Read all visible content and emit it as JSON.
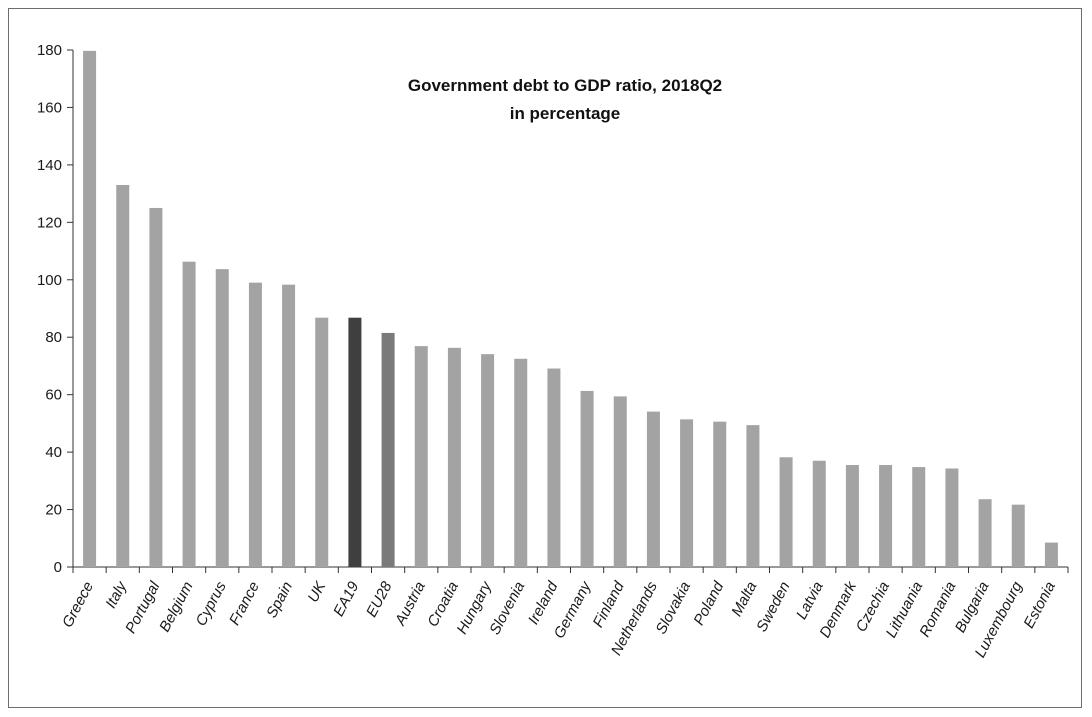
{
  "chart_data": {
    "type": "bar",
    "title": "Government debt to GDP ratio, 2018Q2",
    "subtitle": "in percentage",
    "xlabel": "",
    "ylabel": "",
    "ylim": [
      0,
      180
    ],
    "yticks": [
      0,
      20,
      40,
      60,
      80,
      100,
      120,
      140,
      160,
      180
    ],
    "grid": false,
    "categories": [
      "Greece",
      "Italy",
      "Portugal",
      "Belgium",
      "Cyprus",
      "France",
      "Spain",
      "UK",
      "EA19",
      "EU28",
      "Austria",
      "Croatia",
      "Hungary",
      "Slovenia",
      "Ireland",
      "Germany",
      "Finland",
      "Netherlands",
      "Slovakia",
      "Poland",
      "Malta",
      "Sweden",
      "Latvia",
      "Denmark",
      "Czechia",
      "Lithuania",
      "Romania",
      "Bulgaria",
      "Luxembourg",
      "Estonia"
    ],
    "values": [
      179.7,
      133.0,
      125.0,
      106.3,
      103.7,
      99.0,
      98.3,
      86.8,
      86.8,
      81.5,
      76.9,
      76.3,
      74.1,
      72.5,
      69.1,
      61.3,
      59.4,
      54.1,
      51.4,
      50.6,
      49.4,
      38.2,
      37.0,
      35.5,
      35.5,
      34.8,
      34.3,
      23.6,
      21.7,
      8.5
    ],
    "colors": {
      "default": "#a3a3a3",
      "EA19": "#3f3f3f",
      "EU28": "#7a7a7a"
    }
  }
}
